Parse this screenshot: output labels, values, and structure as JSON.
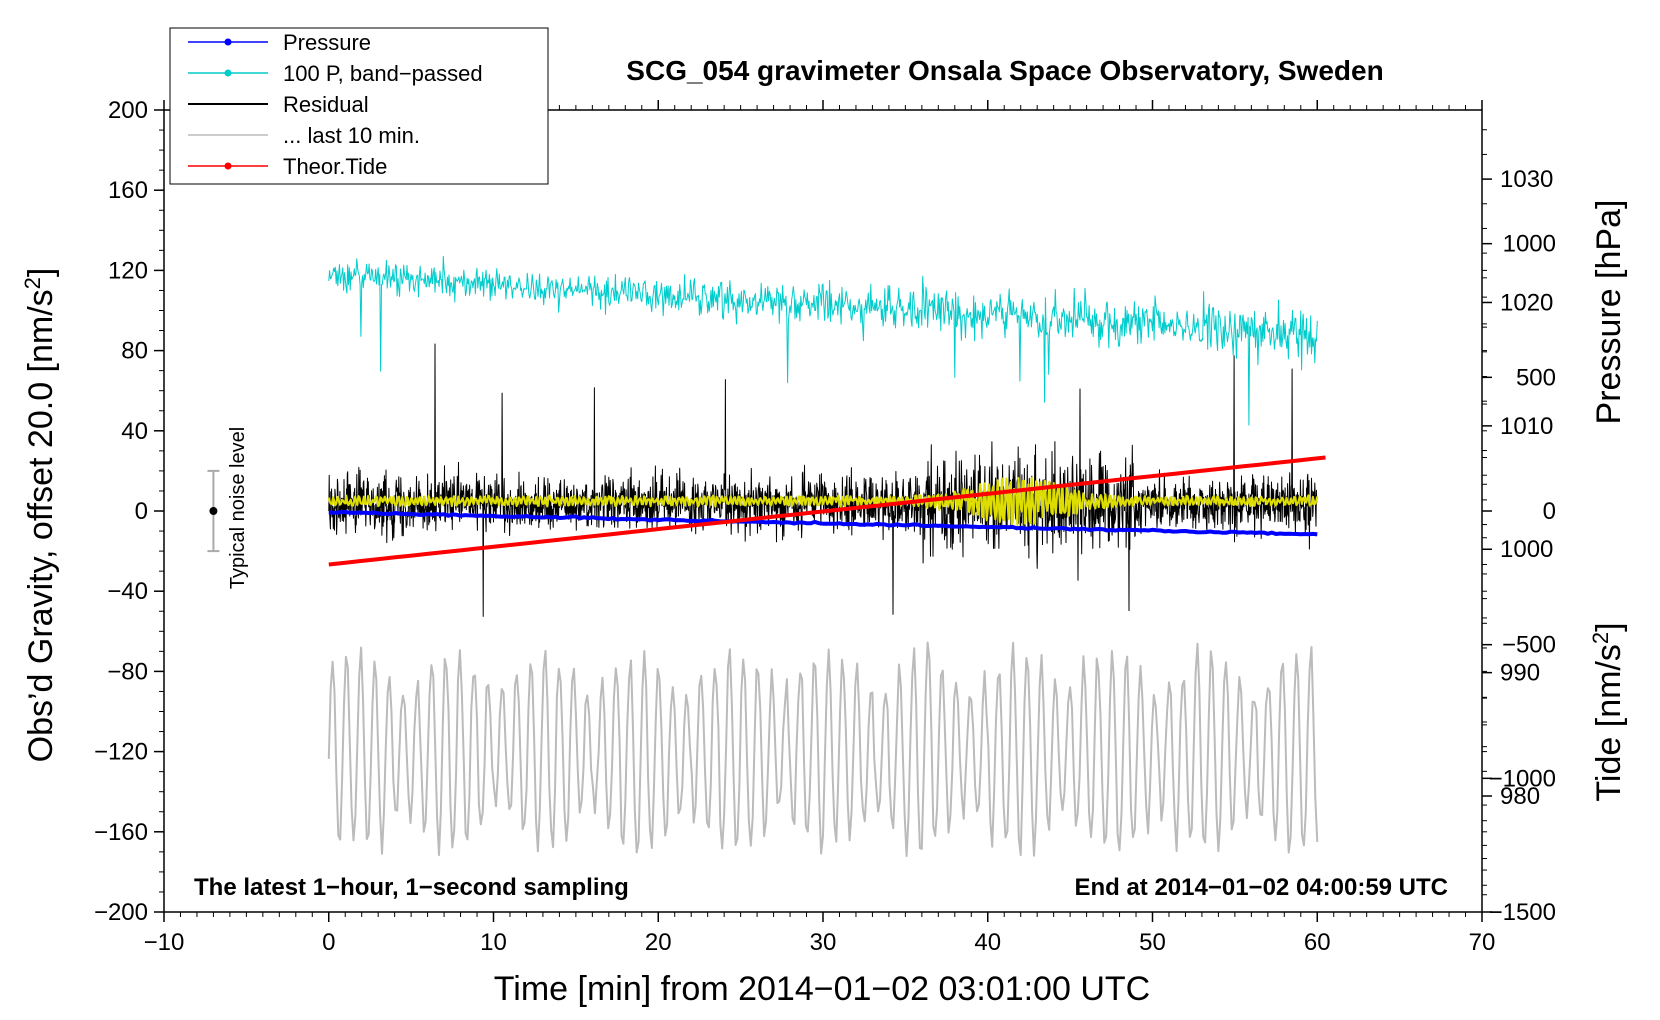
{
  "chart_data": {
    "type": "line",
    "title": "SCG_054 gravimeter Onsala Space Observatory, Sweden",
    "xlabel": "Time [min] from 2014−01−02 03:01:00 UTC",
    "ylabel_left": "Obs’d Gravity, offset 20.0 [nm/s²]",
    "ylabel_right_top": "Pressure [hPa]",
    "ylabel_right_bottom": "Tide [nm/s²]",
    "xlim": [
      -10,
      70
    ],
    "ylim_left": [
      -200,
      200
    ],
    "ylim_pressure": [
      970.6,
      1035.6
    ],
    "ylim_tide": [
      -1500,
      1500
    ],
    "x_ticks": [
      -10,
      0,
      10,
      20,
      30,
      40,
      50,
      60,
      70
    ],
    "x_tick_labels": [
      "−10",
      "0",
      "10",
      "20",
      "30",
      "40",
      "50",
      "60",
      "70"
    ],
    "y_left_ticks": [
      200,
      160,
      120,
      80,
      40,
      0,
      -40,
      -80,
      -120,
      -160,
      -200
    ],
    "y_left_tick_labels": [
      "200",
      "160",
      "120",
      "80",
      "40",
      "0",
      "−40",
      "−80",
      "−120",
      "−160",
      "−200"
    ],
    "y_pressure_ticks": [
      980,
      990,
      1000,
      1010,
      1020,
      1030
    ],
    "y_pressure_tick_labels": [
      "980",
      "990",
      "1000",
      "1010",
      "1020",
      "1030"
    ],
    "y_tide_ticks": [
      1000,
      500,
      0,
      -500,
      -1000,
      -1500
    ],
    "y_tide_tick_labels": [
      "1000",
      "500",
      "0",
      "−500",
      "−1000",
      "−1500"
    ],
    "legend": [
      {
        "label": "Pressure",
        "color": "#0000ff",
        "marker": true
      },
      {
        "label": "100 P, band−passed",
        "color": "#00cccc",
        "marker": true
      },
      {
        "label": "Residual",
        "color": "#000000",
        "marker": false
      },
      {
        "label": "... last 10 min.",
        "color": "#bbbbbb",
        "marker": false
      },
      {
        "label": "Theor.Tide",
        "color": "#ff0000",
        "marker": true
      }
    ],
    "annotations": {
      "left_note": "The latest 1−hour, 1−second sampling",
      "right_note": "End at 2014−01−02 04:00:59 UTC",
      "noise_label": "Typical noise level"
    },
    "noise_bar": {
      "x": -7,
      "center": 0,
      "low": -20,
      "high": 20
    },
    "series": [
      {
        "name": "Pressure",
        "axis": "pressure",
        "color": "#0000ff",
        "x_range": [
          0,
          60
        ],
        "start": 1003.0,
        "end": 1001.2
      },
      {
        "name": "100 P, band−passed",
        "axis": "left",
        "color": "#00cccc",
        "x_range": [
          0,
          60
        ],
        "start": 118,
        "end": 88,
        "amplitude": 10
      },
      {
        "name": "Residual",
        "axis": "left",
        "color": "#000000",
        "x_range": [
          0,
          60
        ],
        "mean": 4,
        "amplitude": 22
      },
      {
        "name": "Residual (smoothed)",
        "axis": "left",
        "color": "#dddd00",
        "x_range": [
          0,
          60
        ],
        "mean": 5,
        "amplitude": 2
      },
      {
        "name": "... last 10 min.",
        "axis": "left",
        "color": "#bbbbbb",
        "x_range": [
          0,
          60
        ],
        "mean": -120,
        "amplitude": 50
      },
      {
        "name": "Theor.Tide",
        "axis": "tide",
        "color": "#ff0000",
        "x_range": [
          0,
          60.5
        ],
        "start": -200,
        "end": 200
      }
    ]
  }
}
